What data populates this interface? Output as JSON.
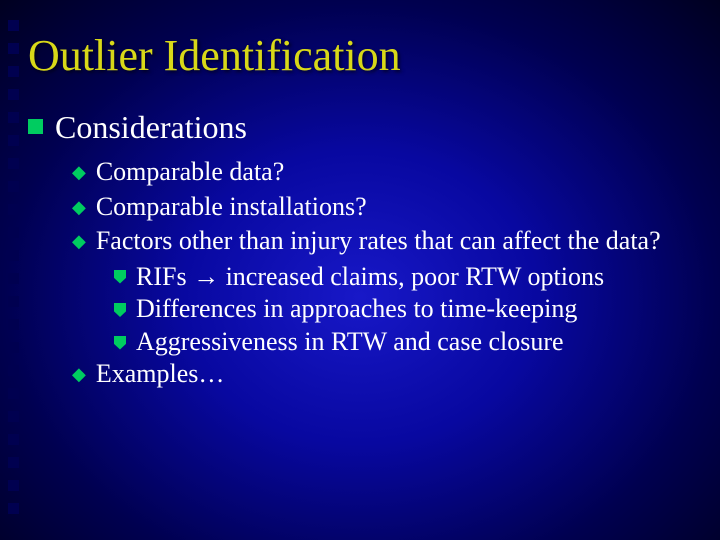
{
  "decor": {
    "square_count": 22,
    "square_color": "#000050"
  },
  "colors": {
    "title": "#d8d818",
    "text": "#ffffff",
    "bullet": "#00cc60",
    "bg_center": "#1818c8",
    "bg_edge": "#000020"
  },
  "title": "Outlier Identification",
  "level1": {
    "text": "Considerations"
  },
  "level2": [
    {
      "text": "Comparable data?"
    },
    {
      "text": "Comparable installations?"
    },
    {
      "text": "Factors other than injury rates that can affect the data?",
      "children": [
        {
          "text": "RIFs → increased claims, poor RTW options"
        },
        {
          "text": "Differences in approaches to time-keeping"
        },
        {
          "text": "Aggressiveness in RTW and case closure"
        }
      ]
    },
    {
      "text": "Examples…"
    }
  ]
}
